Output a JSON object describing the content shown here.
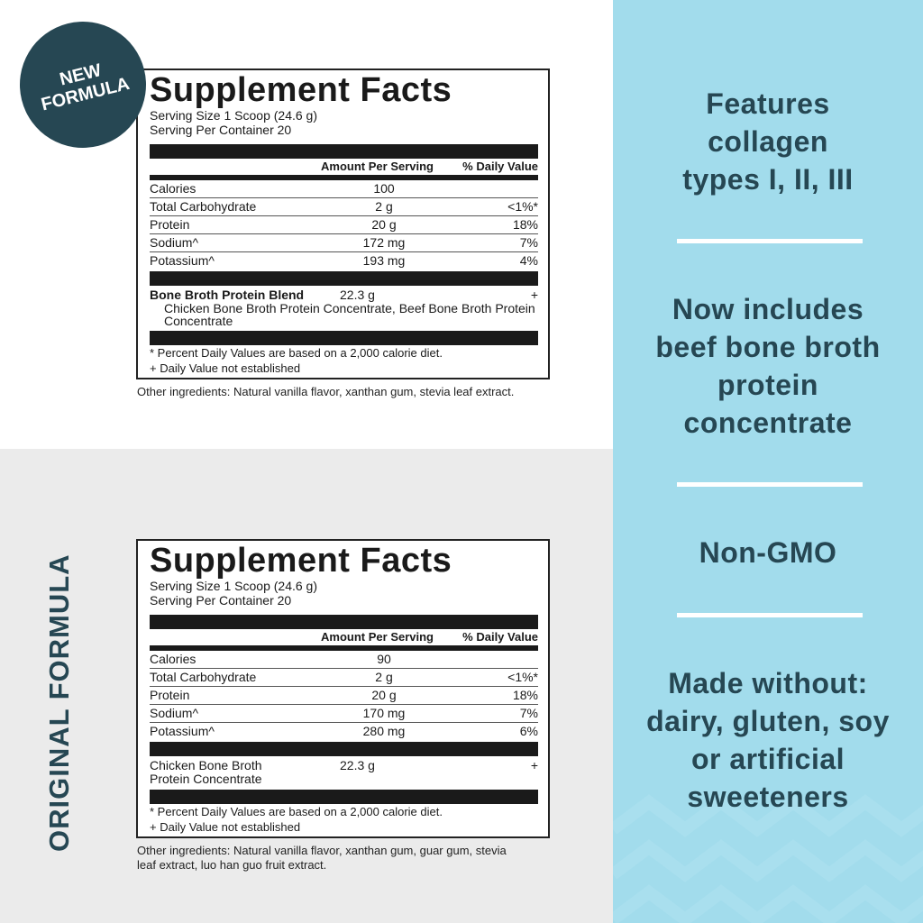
{
  "badge": {
    "line1": "NEW",
    "line2": "FORMULA"
  },
  "original_label": "ORIGINAL FORMULA",
  "labels": [
    {
      "title": "Supplement Facts",
      "serving_size": "Serving Size 1 Scoop (24.6 g)",
      "servings": "Serving Per Container 20",
      "header_amount": "Amount Per Serving",
      "header_dv": "% Daily Value",
      "rows": [
        {
          "name": "Calories",
          "amount": "100",
          "dv": ""
        },
        {
          "name": "Total Carbohydrate",
          "amount": "2 g",
          "dv": "<1%*"
        },
        {
          "name": "Protein",
          "amount": "20 g",
          "dv": "18%"
        },
        {
          "name": "Sodium^",
          "amount": "172 mg",
          "dv": "7%"
        },
        {
          "name": "Potassium^",
          "amount": "193 mg",
          "dv": "4%"
        }
      ],
      "blend": {
        "name": "Bone Broth Protein Blend",
        "amount": "22.3 g",
        "dv": "+",
        "sub": "Chicken Bone Broth Protein Concentrate, Beef Bone Broth Protein Concentrate"
      },
      "foot1": "* Percent Daily Values are based on a 2,000 calorie diet.",
      "foot2": "+ Daily Value not established",
      "other": "Other ingredients: Natural vanilla flavor, xanthan gum, stevia leaf extract."
    },
    {
      "title": "Supplement Facts",
      "serving_size": "Serving Size 1 Scoop (24.6 g)",
      "servings": "Serving Per Container 20",
      "header_amount": "Amount Per Serving",
      "header_dv": "% Daily Value",
      "rows": [
        {
          "name": "Calories",
          "amount": "90",
          "dv": ""
        },
        {
          "name": "Total Carbohydrate",
          "amount": "2 g",
          "dv": "<1%*"
        },
        {
          "name": "Protein",
          "amount": "20 g",
          "dv": "18%"
        },
        {
          "name": "Sodium^",
          "amount": "170 mg",
          "dv": "7%"
        },
        {
          "name": "Potassium^",
          "amount": "280 mg",
          "dv": "6%"
        }
      ],
      "blend": {
        "name": "Chicken Bone Broth Protein Concentrate",
        "amount": "22.3 g",
        "dv": "+",
        "sub": ""
      },
      "foot1": "* Percent Daily Values are based on a 2,000 calorie diet.",
      "foot2": "+ Daily Value not established",
      "other": "Other ingredients: Natural vanilla flavor, xanthan gum, guar gum, stevia leaf extract, luo han guo fruit extract."
    }
  ],
  "features": [
    "Features collagen types I, II, III",
    "Now includes beef bone broth protein concentrate",
    "Non-GMO",
    "Made without: dairy, gluten, soy or artificial sweeteners"
  ],
  "colors": {
    "accent": "#264753",
    "panel": "#a2dcec",
    "gray": "#ebebeb"
  }
}
